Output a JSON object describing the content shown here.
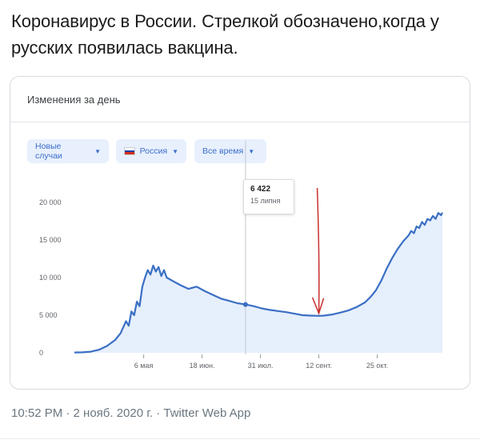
{
  "tweet": {
    "text": "Коронавирус в России. Стрелкой обозначено,когда у русских появилась вакцина.",
    "meta": "10:52 PM · 2 нояб. 2020 г. · Twitter Web App"
  },
  "card": {
    "title": "Изменения за день",
    "chips": [
      {
        "label": "Новые случаи"
      },
      {
        "label": "Россия",
        "flag": [
          "#ffffff",
          "#1c3fa8",
          "#d52b1e"
        ]
      },
      {
        "label": "Все время"
      }
    ]
  },
  "tooltip": {
    "value": "6 422",
    "date": "15 липня"
  },
  "colors": {
    "line": "#3a6fc4",
    "area": "#e6effc",
    "arrow": "#c8302f",
    "chip_bg": "#e8f0fe"
  },
  "chart_data": {
    "type": "line",
    "title": "Изменения за день",
    "series": [
      {
        "values": [
          [
            0,
            40
          ],
          [
            6,
            60
          ],
          [
            12,
            150
          ],
          [
            18,
            400
          ],
          [
            24,
            900
          ],
          [
            30,
            1700
          ],
          [
            34,
            2600
          ],
          [
            38,
            4200
          ],
          [
            40,
            3600
          ],
          [
            42,
            5500
          ],
          [
            44,
            5000
          ],
          [
            46,
            6800
          ],
          [
            48,
            6200
          ],
          [
            50,
            8800
          ],
          [
            52,
            10000
          ],
          [
            54,
            11000
          ],
          [
            56,
            10400
          ],
          [
            58,
            11600
          ],
          [
            60,
            10800
          ],
          [
            62,
            11400
          ],
          [
            64,
            10200
          ],
          [
            66,
            11000
          ],
          [
            68,
            10000
          ],
          [
            72,
            9600
          ],
          [
            78,
            9000
          ],
          [
            84,
            8500
          ],
          [
            90,
            8800
          ],
          [
            96,
            8200
          ],
          [
            102,
            7700
          ],
          [
            108,
            7200
          ],
          [
            114,
            6900
          ],
          [
            120,
            6600
          ],
          [
            126,
            6422
          ],
          [
            132,
            6200
          ],
          [
            138,
            5900
          ],
          [
            144,
            5700
          ],
          [
            150,
            5550
          ],
          [
            156,
            5400
          ],
          [
            162,
            5200
          ],
          [
            168,
            5000
          ],
          [
            174,
            4950
          ],
          [
            180,
            4920
          ],
          [
            184,
            4950
          ],
          [
            186,
            5000
          ],
          [
            190,
            5100
          ],
          [
            196,
            5350
          ],
          [
            202,
            5650
          ],
          [
            208,
            6100
          ],
          [
            214,
            6700
          ],
          [
            218,
            7400
          ],
          [
            222,
            8300
          ],
          [
            226,
            9600
          ],
          [
            230,
            11200
          ],
          [
            234,
            12600
          ],
          [
            238,
            13800
          ],
          [
            242,
            14800
          ],
          [
            246,
            15600
          ],
          [
            248,
            16200
          ],
          [
            250,
            15900
          ],
          [
            252,
            16800
          ],
          [
            254,
            16600
          ],
          [
            256,
            17400
          ],
          [
            258,
            17000
          ],
          [
            260,
            17800
          ],
          [
            262,
            17600
          ],
          [
            264,
            18200
          ],
          [
            266,
            17800
          ],
          [
            268,
            18600
          ],
          [
            270,
            18300
          ],
          [
            271,
            18650
          ]
        ]
      }
    ],
    "x_ticks": [
      {
        "label": "6 мая",
        "x": 51
      },
      {
        "label": "18 июн.",
        "x": 94
      },
      {
        "label": "31 июл.",
        "x": 137
      },
      {
        "label": "12 сент.",
        "x": 180
      },
      {
        "label": "25 окт.",
        "x": 223
      }
    ],
    "y_ticks": [
      {
        "label": "20 000",
        "value": 20000
      },
      {
        "label": "15 000",
        "value": 15000
      },
      {
        "label": "10 000",
        "value": 10000
      },
      {
        "label": "5 000",
        "value": 5000
      },
      {
        "label": "0",
        "value": 0
      }
    ],
    "xlim": [
      0,
      271
    ],
    "ylim": [
      0,
      20000
    ],
    "highlight": {
      "x": 126,
      "value": 6422,
      "label": "15 липня"
    },
    "arrow_at": {
      "x": 180,
      "value": 4920
    }
  }
}
